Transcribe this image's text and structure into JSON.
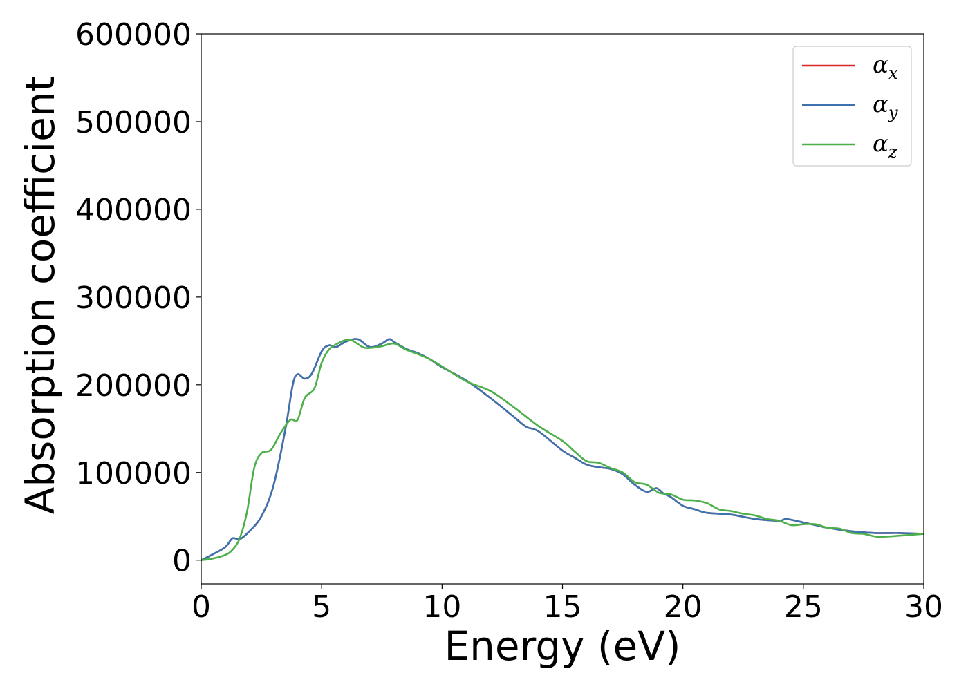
{
  "chart_data": {
    "type": "line",
    "title": "",
    "xlabel": "Energy (eV)",
    "ylabel": "Absorption coefficient",
    "xlim": [
      0,
      30
    ],
    "ylim": [
      -27000,
      600000
    ],
    "xticks": [
      0,
      5,
      10,
      15,
      20,
      25,
      30
    ],
    "xtick_labels": [
      "0",
      "5",
      "10",
      "15",
      "20",
      "25",
      "30"
    ],
    "yticks": [
      0,
      100000,
      200000,
      300000,
      400000,
      500000,
      600000
    ],
    "ytick_labels": [
      "0",
      "100000",
      "200000",
      "300000",
      "400000",
      "500000",
      "600000"
    ],
    "grid": false,
    "legend_position": "top-right",
    "series": [
      {
        "name": "α",
        "subscript": "x",
        "color": "#d62728",
        "x": [
          0,
          0.5,
          1.0,
          1.3,
          1.6,
          2.0,
          2.5,
          3.0,
          3.5,
          3.8,
          4.0,
          4.3,
          4.6,
          5.0,
          5.3,
          5.6,
          6.0,
          6.5,
          7.0,
          7.5,
          7.8,
          8.0,
          8.5,
          9.0,
          9.5,
          10.0,
          11.0,
          12.0,
          13.0,
          13.5,
          14.0,
          15.0,
          15.5,
          16.0,
          16.5,
          17.0,
          17.5,
          18.0,
          18.5,
          18.9,
          19.2,
          19.5,
          20.0,
          20.5,
          21.0,
          22.0,
          23.0,
          24.0,
          24.3,
          25.0,
          25.5,
          26.0,
          27.0,
          28.0,
          29.0,
          30.0
        ],
        "y": [
          0,
          7000,
          15000,
          25000,
          24000,
          33000,
          50000,
          85000,
          150000,
          200000,
          212000,
          207000,
          213000,
          238000,
          245000,
          243000,
          249000,
          252000,
          243000,
          247000,
          252000,
          249000,
          241000,
          236000,
          229000,
          220000,
          205000,
          185000,
          163000,
          152000,
          147000,
          125000,
          117000,
          109000,
          106000,
          104000,
          98000,
          86000,
          78000,
          82000,
          76000,
          72000,
          62000,
          58000,
          54000,
          52000,
          47000,
          45000,
          47000,
          43000,
          40000,
          37000,
          33000,
          31000,
          31000,
          30000
        ]
      },
      {
        "name": "α",
        "subscript": "y",
        "color": "#3a73b0",
        "x": [
          0,
          0.5,
          1.0,
          1.3,
          1.6,
          2.0,
          2.5,
          3.0,
          3.5,
          3.8,
          4.0,
          4.3,
          4.6,
          5.0,
          5.3,
          5.6,
          6.0,
          6.5,
          7.0,
          7.5,
          7.8,
          8.0,
          8.5,
          9.0,
          9.5,
          10.0,
          11.0,
          12.0,
          13.0,
          13.5,
          14.0,
          15.0,
          15.5,
          16.0,
          16.5,
          17.0,
          17.5,
          18.0,
          18.5,
          18.9,
          19.2,
          19.5,
          20.0,
          20.5,
          21.0,
          22.0,
          23.0,
          24.0,
          24.3,
          25.0,
          25.5,
          26.0,
          27.0,
          28.0,
          29.0,
          30.0
        ],
        "y": [
          0,
          7000,
          15000,
          25000,
          24000,
          33000,
          50000,
          85000,
          150000,
          200000,
          212000,
          207000,
          213000,
          238000,
          245000,
          243000,
          249000,
          252000,
          243000,
          247000,
          252000,
          249000,
          241000,
          236000,
          229000,
          220000,
          205000,
          185000,
          163000,
          152000,
          147000,
          125000,
          117000,
          109000,
          106000,
          104000,
          98000,
          86000,
          78000,
          82000,
          76000,
          72000,
          62000,
          58000,
          54000,
          52000,
          47000,
          45000,
          47000,
          43000,
          40000,
          37000,
          33000,
          31000,
          31000,
          30000
        ]
      },
      {
        "name": "α",
        "subscript": "z",
        "color": "#4daf4a",
        "x": [
          0,
          0.5,
          1.0,
          1.3,
          1.6,
          1.9,
          2.2,
          2.5,
          2.9,
          3.3,
          3.7,
          4.0,
          4.3,
          4.7,
          5.0,
          5.3,
          5.6,
          6.0,
          6.3,
          6.7,
          7.0,
          7.5,
          8.0,
          8.5,
          9.0,
          9.5,
          10.0,
          11.0,
          12.0,
          13.0,
          14.0,
          15.0,
          15.5,
          16.0,
          16.5,
          17.0,
          17.5,
          18.0,
          18.5,
          19.0,
          19.5,
          20.0,
          20.5,
          21.0,
          21.5,
          22.0,
          22.5,
          23.0,
          23.5,
          24.0,
          24.5,
          25.0,
          25.5,
          26.0,
          26.5,
          27.0,
          27.5,
          28.0,
          28.5,
          29.0,
          30.0
        ],
        "y": [
          0,
          2000,
          6000,
          12000,
          25000,
          55000,
          105000,
          122000,
          126000,
          145000,
          160000,
          160000,
          185000,
          196000,
          225000,
          240000,
          246000,
          251000,
          250000,
          243000,
          242000,
          244000,
          247000,
          240000,
          235000,
          229000,
          221000,
          204000,
          193000,
          174000,
          153000,
          136000,
          124000,
          113000,
          111000,
          105000,
          100000,
          89000,
          86000,
          77000,
          75000,
          69000,
          68000,
          65000,
          58000,
          56000,
          53000,
          51000,
          47000,
          45000,
          40000,
          41000,
          41000,
          37000,
          36000,
          31000,
          30000,
          27000,
          27000,
          28000,
          30000
        ]
      }
    ]
  }
}
